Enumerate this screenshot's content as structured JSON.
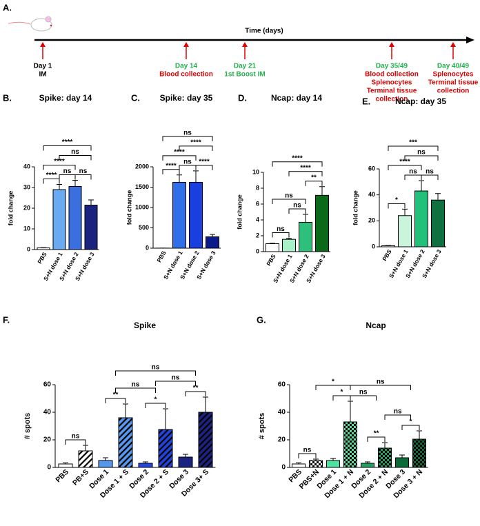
{
  "timeline": {
    "panel": "A.",
    "axis_label": "Time (days)",
    "events": [
      {
        "lines": [
          {
            "text": "Day 1",
            "color": "#000000"
          },
          {
            "text": "IM",
            "color": "#000000"
          }
        ]
      },
      {
        "lines": [
          {
            "text": "Day 14",
            "color": "#22b14c"
          },
          {
            "text": "Blood collection",
            "color": "#e00000"
          }
        ]
      },
      {
        "lines": [
          {
            "text": "Day 21",
            "color": "#22b14c"
          },
          {
            "text": "1st Boost IM",
            "color": "#22b14c"
          }
        ]
      },
      {
        "lines": [
          {
            "text": "Day 35/49",
            "color": "#22b14c"
          },
          {
            "text": "Blood collection",
            "color": "#e00000"
          },
          {
            "text": "Splenocytes",
            "color": "#e00000"
          },
          {
            "text": "Terminal tissue",
            "color": "#e00000"
          },
          {
            "text": "collection",
            "color": "#e00000"
          }
        ]
      },
      {
        "lines": [
          {
            "text": "Day 40/49",
            "color": "#22b14c"
          },
          {
            "text": "Splenocytes",
            "color": "#e00000"
          },
          {
            "text": "Terminal tissue",
            "color": "#e00000"
          },
          {
            "text": "collection",
            "color": "#e00000"
          }
        ]
      }
    ]
  },
  "chart_data": [
    {
      "type": "bar",
      "panel": "B.",
      "title": "Spike: day 14",
      "y_label": "fold change",
      "categories": [
        "PBS",
        "S+N dose 1",
        "S+N dose 2",
        "S+N dose 3"
      ],
      "values": [
        0.8,
        29,
        30.5,
        21.5
      ],
      "errors": [
        0.1,
        2.5,
        3,
        2.5
      ],
      "colors": [
        "#ffffff",
        "#6aaaf0",
        "#3b6fe0",
        "#1a237e"
      ],
      "ylim": [
        0,
        40
      ],
      "yticks": [
        0,
        10,
        20,
        30,
        40
      ],
      "brackets": [
        {
          "from": [
            0
          ],
          "to": [
            1
          ],
          "label": "****"
        },
        {
          "from": [
            1
          ],
          "to": [
            2
          ],
          "label": "ns"
        },
        {
          "from": [
            2
          ],
          "to": [
            3
          ],
          "label": "ns"
        },
        {
          "from": [
            0
          ],
          "to": [
            2
          ],
          "label": "****"
        },
        {
          "from": [
            1
          ],
          "to": [
            3
          ],
          "label": "ns"
        },
        {
          "from": [
            0
          ],
          "to": [
            3
          ],
          "label": "****"
        }
      ]
    },
    {
      "type": "bar",
      "panel": "C.",
      "title": "Spike: day 35",
      "y_label": "fold change",
      "categories": [
        "PBS",
        "S+N dose 1",
        "S+N dose 2",
        "S+N dose 3"
      ],
      "values": [
        2,
        1620,
        1620,
        280
      ],
      "errors": [
        0,
        180,
        280,
        60
      ],
      "colors": [
        "#ffffff",
        "#2f6fe8",
        "#1a3fe0",
        "#0a1a8a"
      ],
      "ylim": [
        0,
        2000
      ],
      "yticks": [
        0,
        500,
        1000,
        1500,
        2000
      ],
      "brackets": [
        {
          "from": [
            0
          ],
          "to": [
            1
          ],
          "label": "****"
        },
        {
          "from": [
            1
          ],
          "to": [
            2
          ],
          "label": "ns"
        },
        {
          "from": [
            2
          ],
          "to": [
            3
          ],
          "label": "****"
        },
        {
          "from": [
            0
          ],
          "to": [
            2
          ],
          "label": "****"
        },
        {
          "from": [
            1
          ],
          "to": [
            3
          ],
          "label": "****"
        },
        {
          "from": [
            0
          ],
          "to": [
            3
          ],
          "label": "ns"
        }
      ]
    },
    {
      "type": "bar",
      "panel": "D.",
      "title": "Ncap: day 14",
      "y_label": "fold change",
      "categories": [
        "PBS",
        "S+N dose 1",
        "S+N dose 2",
        "S+N dose 3"
      ],
      "values": [
        1,
        1.55,
        3.7,
        7.1
      ],
      "errors": [
        0.05,
        0.15,
        1.0,
        1.1
      ],
      "colors": [
        "#ffffff",
        "#a8f0c8",
        "#2ec07a",
        "#0a6a1a"
      ],
      "ylim": [
        0,
        10
      ],
      "yticks": [
        0,
        2,
        4,
        6,
        8,
        10
      ],
      "brackets": [
        {
          "from": [
            0
          ],
          "to": [
            1
          ],
          "label": "ns"
        },
        {
          "from": [
            1
          ],
          "to": [
            2
          ],
          "label": "ns"
        },
        {
          "from": [
            2
          ],
          "to": [
            3
          ],
          "label": "**"
        },
        {
          "from": [
            0
          ],
          "to": [
            2
          ],
          "label": "ns"
        },
        {
          "from": [
            1
          ],
          "to": [
            3
          ],
          "label": "****"
        },
        {
          "from": [
            0
          ],
          "to": [
            3
          ],
          "label": "****"
        }
      ]
    },
    {
      "type": "bar",
      "panel": "E.",
      "title": "Ncap: day 35",
      "y_label": "fold change",
      "categories": [
        "PBS",
        "S+N dose 1",
        "S+N dose 2",
        "S+N dose 3"
      ],
      "values": [
        0.8,
        24,
        43,
        36
      ],
      "errors": [
        0.2,
        5,
        8,
        5
      ],
      "colors": [
        "#ffffff",
        "#c8f5dc",
        "#22c07a",
        "#0f7040"
      ],
      "ylim": [
        0,
        60
      ],
      "yticks": [
        0,
        20,
        40,
        60
      ],
      "brackets": [
        {
          "from": [
            0
          ],
          "to": [
            1
          ],
          "label": "*"
        },
        {
          "from": [
            1
          ],
          "to": [
            2
          ],
          "label": "ns"
        },
        {
          "from": [
            2
          ],
          "to": [
            3
          ],
          "label": "ns"
        },
        {
          "from": [
            0
          ],
          "to": [
            2
          ],
          "label": "****"
        },
        {
          "from": [
            1
          ],
          "to": [
            3
          ],
          "label": "ns"
        },
        {
          "from": [
            0
          ],
          "to": [
            3
          ],
          "label": "***"
        }
      ]
    },
    {
      "type": "bar",
      "panel": "F.",
      "title": "Spike",
      "y_label": "# spots",
      "pattern": "hatch",
      "categories": [
        "PBS",
        "PB+S",
        "Dose 1",
        "Dose 1 + S",
        "Dose 2",
        "Dose 2 + S",
        "Dose 3",
        "Dose 3+ S"
      ],
      "values": [
        2.5,
        12,
        5,
        36,
        3,
        27.5,
        7.5,
        40
      ],
      "errors": [
        0.8,
        4,
        2,
        10,
        1,
        15,
        2,
        11
      ],
      "colors": [
        "#ffffff",
        "#ffffff",
        "#5599ee",
        "#5599ee",
        "#2244dd",
        "#2244dd",
        "#1a237e",
        "#1a237e"
      ],
      "patterned": [
        false,
        true,
        false,
        true,
        false,
        true,
        false,
        true
      ],
      "ylim": [
        0,
        60
      ],
      "yticks": [
        0,
        20,
        40,
        60
      ],
      "brackets": [
        {
          "from": [
            0
          ],
          "to": [
            1
          ],
          "label": "ns"
        },
        {
          "from": [
            2
          ],
          "to": [
            3
          ],
          "label": "**"
        },
        {
          "from": [
            4
          ],
          "to": [
            5
          ],
          "label": "*"
        },
        {
          "from": [
            6
          ],
          "to": [
            7
          ],
          "label": "**"
        },
        {
          "from": [
            4,
            5
          ],
          "to": [
            6,
            7
          ],
          "label": "ns"
        },
        {
          "from": [
            2,
            3
          ],
          "to": [
            4,
            5
          ],
          "label": "ns"
        },
        {
          "from": [
            2,
            3
          ],
          "to": [
            6,
            7
          ],
          "label": "ns"
        }
      ]
    },
    {
      "type": "bar",
      "panel": "G.",
      "title": "Ncap",
      "y_label": "# spots",
      "pattern": "check",
      "categories": [
        "PBS",
        "PBS+N",
        "Dose 1",
        "Dose 1 + N",
        "Dose 2",
        "Dose 2 + N",
        "Dose 3",
        "Dose 3 + N"
      ],
      "values": [
        2.5,
        5,
        5,
        33,
        3,
        14,
        7,
        20.5
      ],
      "errors": [
        0.8,
        1,
        1.5,
        15,
        1,
        4,
        2,
        6
      ],
      "colors": [
        "#ffffff",
        "#ffffff",
        "#50e0a0",
        "#50e0a0",
        "#22a060",
        "#22a060",
        "#0f6a3a",
        "#0f6a3a"
      ],
      "patterned": [
        false,
        true,
        false,
        true,
        false,
        true,
        false,
        true
      ],
      "ylim": [
        0,
        60
      ],
      "yticks": [
        0,
        20,
        40,
        60
      ],
      "brackets": [
        {
          "from": [
            0
          ],
          "to": [
            1
          ],
          "label": "ns"
        },
        {
          "from": [
            2
          ],
          "to": [
            3
          ],
          "label": "*"
        },
        {
          "from": [
            4
          ],
          "to": [
            5
          ],
          "label": "**"
        },
        {
          "from": [
            6
          ],
          "to": [
            7
          ],
          "label": "*"
        },
        {
          "from": [
            1
          ],
          "to": [
            3
          ],
          "label": "*"
        },
        {
          "from": [
            5
          ],
          "to": [
            6,
            7
          ],
          "label": "ns"
        },
        {
          "from": [
            3
          ],
          "to": [
            4,
            5
          ],
          "label": "ns"
        },
        {
          "from": [
            3
          ],
          "to": [
            6,
            7
          ],
          "label": "ns"
        }
      ]
    }
  ]
}
